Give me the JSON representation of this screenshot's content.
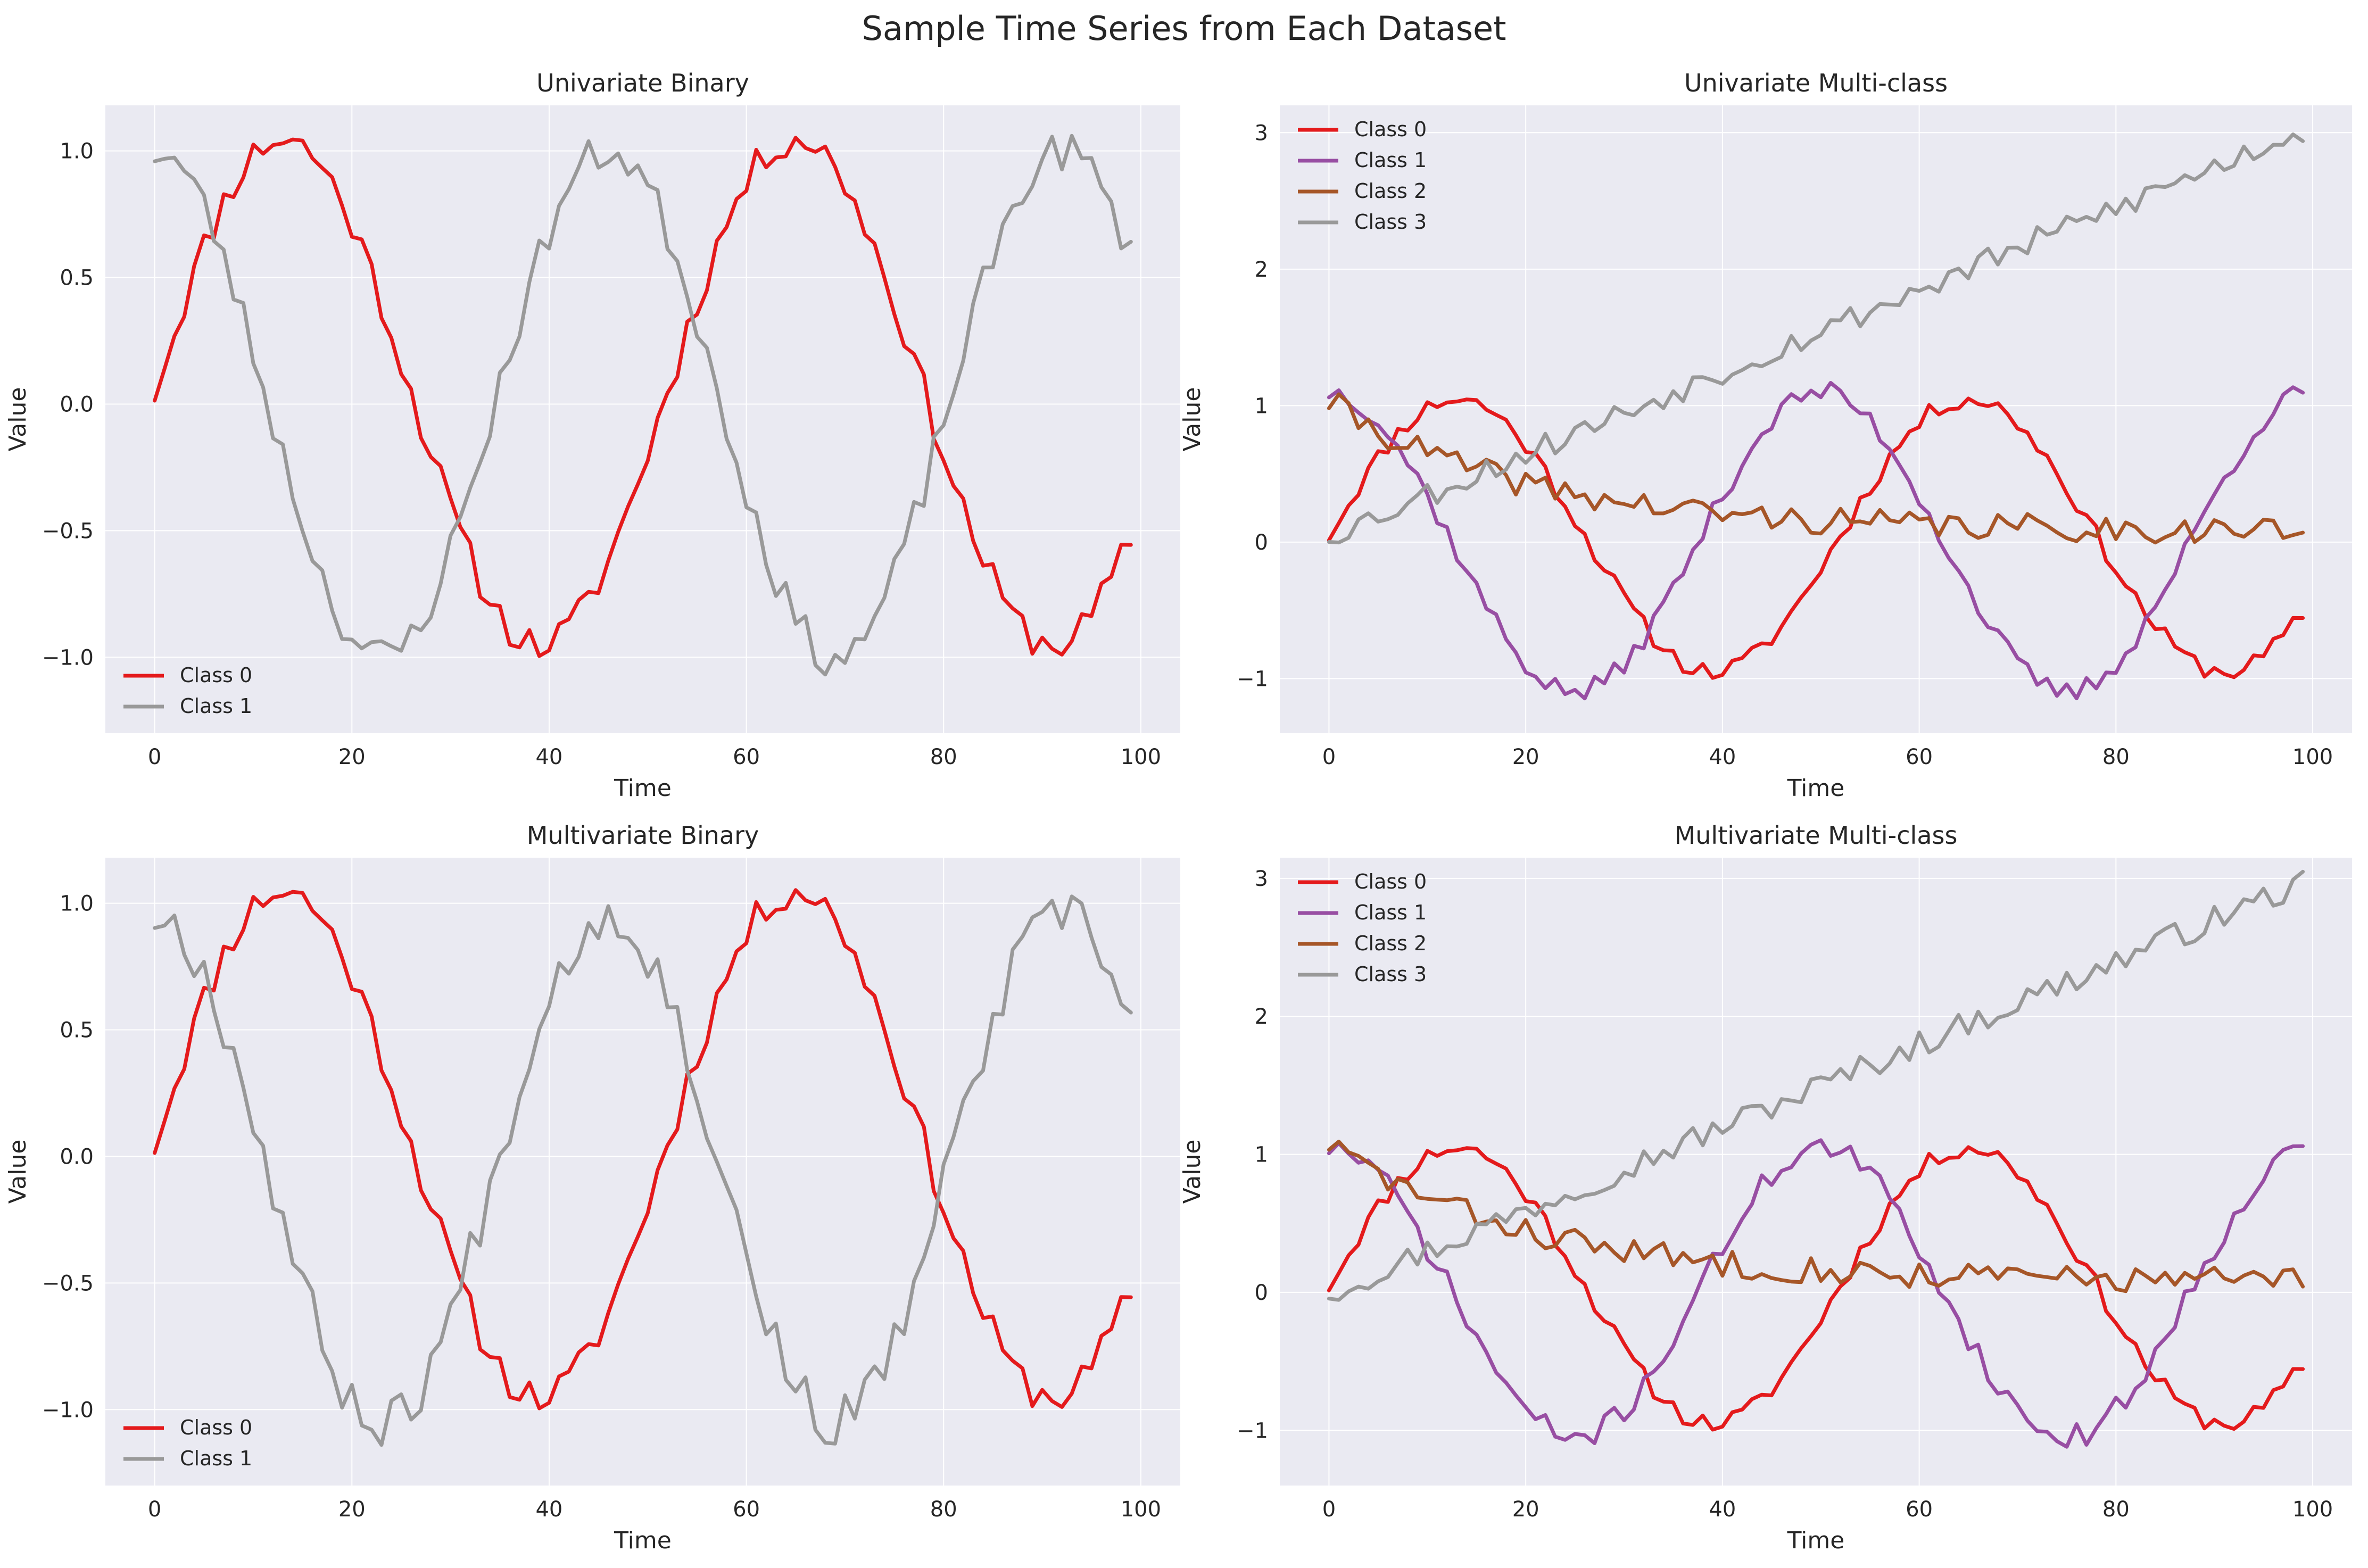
{
  "figure": {
    "title": "Sample Time Series from Each Dataset",
    "colors": {
      "plot_bg": "#eaeaf2",
      "grid": "#ffffff",
      "text": "#262626"
    }
  },
  "chart_data": [
    {
      "id": "uni-binary",
      "type": "line",
      "title": "Univariate Binary",
      "xlabel": "Time",
      "ylabel": "Value",
      "xlim": [
        -5,
        104
      ],
      "ylim": [
        -1.3,
        1.18
      ],
      "xticks": [
        0,
        20,
        40,
        60,
        80,
        100
      ],
      "yticks": [
        -1.0,
        -0.5,
        0.0,
        0.5,
        1.0
      ],
      "ytick_labels": [
        "−1.0",
        "−0.5",
        "0.0",
        "0.5",
        "1.0"
      ],
      "xtick_labels": [
        "0",
        "20",
        "40",
        "60",
        "80",
        "100"
      ],
      "grid": true,
      "legend_position": "lower-left",
      "series": [
        {
          "name": "Class 0",
          "color": "#e41a1c",
          "kind": "sin_noise",
          "amp": 1.0,
          "period": 52,
          "phase": 0.0,
          "offset": 0.05,
          "noise": 0.07,
          "seed": 11
        },
        {
          "name": "Class 1",
          "color": "#999999",
          "kind": "cos_noise",
          "amp": 1.0,
          "period": 46,
          "phase": 0.0,
          "offset": 0.0,
          "noise": 0.08,
          "seed": 23
        }
      ]
    },
    {
      "id": "uni-multi",
      "type": "line",
      "title": "Univariate Multi-class",
      "xlabel": "Time",
      "ylabel": "Value",
      "xlim": [
        -5,
        104
      ],
      "ylim": [
        -1.4,
        3.2
      ],
      "xticks": [
        0,
        20,
        40,
        60,
        80,
        100
      ],
      "yticks": [
        -1,
        0,
        1,
        2,
        3
      ],
      "ytick_labels": [
        "−1",
        "0",
        "1",
        "2",
        "3"
      ],
      "xtick_labels": [
        "0",
        "20",
        "40",
        "60",
        "80",
        "100"
      ],
      "grid": true,
      "legend_position": "upper-left",
      "series": [
        {
          "name": "Class 0",
          "color": "#e41a1c",
          "kind": "sin_noise",
          "amp": 1.0,
          "period": 52,
          "phase": 0.0,
          "offset": 0.05,
          "noise": 0.07,
          "seed": 11
        },
        {
          "name": "Class 1",
          "color": "#984ea3",
          "kind": "cos_noise",
          "amp": 1.1,
          "period": 50,
          "phase": 0.0,
          "offset": 0.0,
          "noise": 0.08,
          "seed": 37
        },
        {
          "name": "Class 2",
          "color": "#a65628",
          "kind": "decay_noise",
          "amp": 0.95,
          "rate": 0.05,
          "offset": 0.0,
          "noise": 0.1,
          "seed": 41
        },
        {
          "name": "Class 3",
          "color": "#999999",
          "kind": "trend_noise",
          "start": 0.05,
          "slope": 0.03,
          "noise": 0.1,
          "seed": 53
        }
      ]
    },
    {
      "id": "multi-binary",
      "type": "line",
      "title": "Multivariate Binary",
      "xlabel": "Time",
      "ylabel": "Value",
      "xlim": [
        -5,
        104
      ],
      "ylim": [
        -1.3,
        1.18
      ],
      "xticks": [
        0,
        20,
        40,
        60,
        80,
        100
      ],
      "yticks": [
        -1.0,
        -0.5,
        0.0,
        0.5,
        1.0
      ],
      "ytick_labels": [
        "−1.0",
        "−0.5",
        "0.0",
        "0.5",
        "1.0"
      ],
      "xtick_labels": [
        "0",
        "20",
        "40",
        "60",
        "80",
        "100"
      ],
      "grid": true,
      "legend_position": "lower-left",
      "series": [
        {
          "name": "Class 0",
          "color": "#e41a1c",
          "kind": "sin_noise",
          "amp": 1.0,
          "period": 52,
          "phase": 0.0,
          "offset": 0.05,
          "noise": 0.07,
          "seed": 11
        },
        {
          "name": "Class 1",
          "color": "#999999",
          "kind": "cos_noise",
          "amp": 1.0,
          "period": 46,
          "phase": 0.0,
          "offset": -0.05,
          "noise": 0.1,
          "seed": 67
        }
      ]
    },
    {
      "id": "multi-multi",
      "type": "line",
      "title": "Multivariate Multi-class",
      "xlabel": "Time",
      "ylabel": "Value",
      "xlim": [
        -5,
        104
      ],
      "ylim": [
        -1.4,
        3.15
      ],
      "xticks": [
        0,
        20,
        40,
        60,
        80,
        100
      ],
      "yticks": [
        -1,
        0,
        1,
        2,
        3
      ],
      "ytick_labels": [
        "−1",
        "0",
        "1",
        "2",
        "3"
      ],
      "xtick_labels": [
        "0",
        "20",
        "40",
        "60",
        "80",
        "100"
      ],
      "grid": true,
      "legend_position": "upper-left",
      "series": [
        {
          "name": "Class 0",
          "color": "#e41a1c",
          "kind": "sin_noise",
          "amp": 1.0,
          "period": 52,
          "phase": 0.0,
          "offset": 0.05,
          "noise": 0.07,
          "seed": 11
        },
        {
          "name": "Class 1",
          "color": "#984ea3",
          "kind": "cos_noise",
          "amp": 1.05,
          "period": 50,
          "phase": 0.0,
          "offset": 0.0,
          "noise": 0.09,
          "seed": 71
        },
        {
          "name": "Class 2",
          "color": "#a65628",
          "kind": "decay_noise",
          "amp": 1.0,
          "rate": 0.05,
          "offset": 0.0,
          "noise": 0.1,
          "seed": 83
        },
        {
          "name": "Class 3",
          "color": "#999999",
          "kind": "trend_noise",
          "start": 0.0,
          "slope": 0.03,
          "noise": 0.1,
          "seed": 97
        }
      ]
    }
  ]
}
